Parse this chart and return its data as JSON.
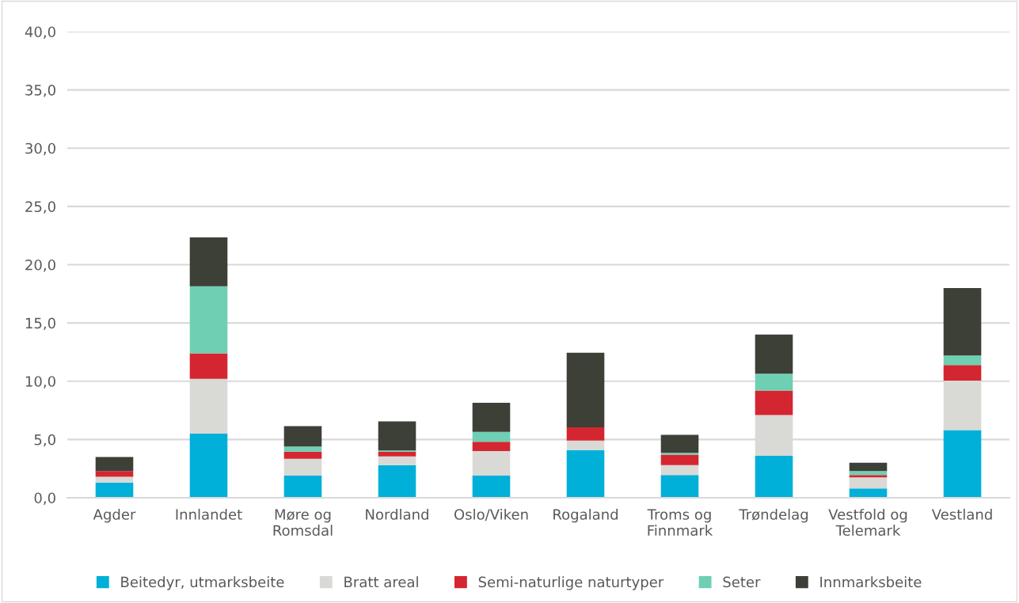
{
  "chart_data": {
    "type": "bar",
    "stacked": true,
    "categories": [
      "Agder",
      "Innlandet",
      "Møre og\nRomsdal",
      "Nordland",
      "Oslo/Viken",
      "Rogaland",
      "Troms og\nFinnmark",
      "Trøndelag",
      "Vestfold og\nTelemark",
      "Vestland"
    ],
    "series": [
      {
        "name": "Beitedyr, utmarksbeite",
        "color": "#00b0d8",
        "values": [
          1.3,
          5.5,
          1.9,
          2.8,
          1.9,
          4.1,
          1.95,
          3.6,
          0.8,
          5.8
        ]
      },
      {
        "name": "Bratt areal",
        "color": "#d9d9d6",
        "values": [
          0.5,
          4.7,
          1.45,
          0.75,
          2.1,
          0.8,
          0.85,
          3.5,
          0.95,
          4.25
        ]
      },
      {
        "name": "Semi-naturlige naturtyper",
        "color": "#d42630",
        "values": [
          0.5,
          2.2,
          0.6,
          0.4,
          0.8,
          1.15,
          0.9,
          2.1,
          0.2,
          1.35
        ]
      },
      {
        "name": "Seter",
        "color": "#6fcfb3",
        "values": [
          0,
          5.75,
          0.45,
          0.1,
          0.85,
          0,
          0.15,
          1.45,
          0.35,
          0.8
        ]
      },
      {
        "name": "Innmarksbeite",
        "color": "#3c4037",
        "values": [
          1.2,
          4.2,
          1.75,
          2.5,
          2.5,
          6.4,
          1.55,
          3.35,
          0.7,
          5.8
        ]
      }
    ],
    "ylim": [
      0,
      40
    ],
    "yticks": [
      {
        "value": 0,
        "label": "0,0"
      },
      {
        "value": 5,
        "label": "5,0"
      },
      {
        "value": 10,
        "label": "10,0"
      },
      {
        "value": 15,
        "label": "15,0"
      },
      {
        "value": 20,
        "label": "20,0"
      },
      {
        "value": 25,
        "label": "25,0"
      },
      {
        "value": 30,
        "label": "30,0"
      },
      {
        "value": 35,
        "label": "35,0"
      },
      {
        "value": 40,
        "label": "40,0"
      }
    ],
    "grid": "y",
    "legend": "bottom"
  }
}
